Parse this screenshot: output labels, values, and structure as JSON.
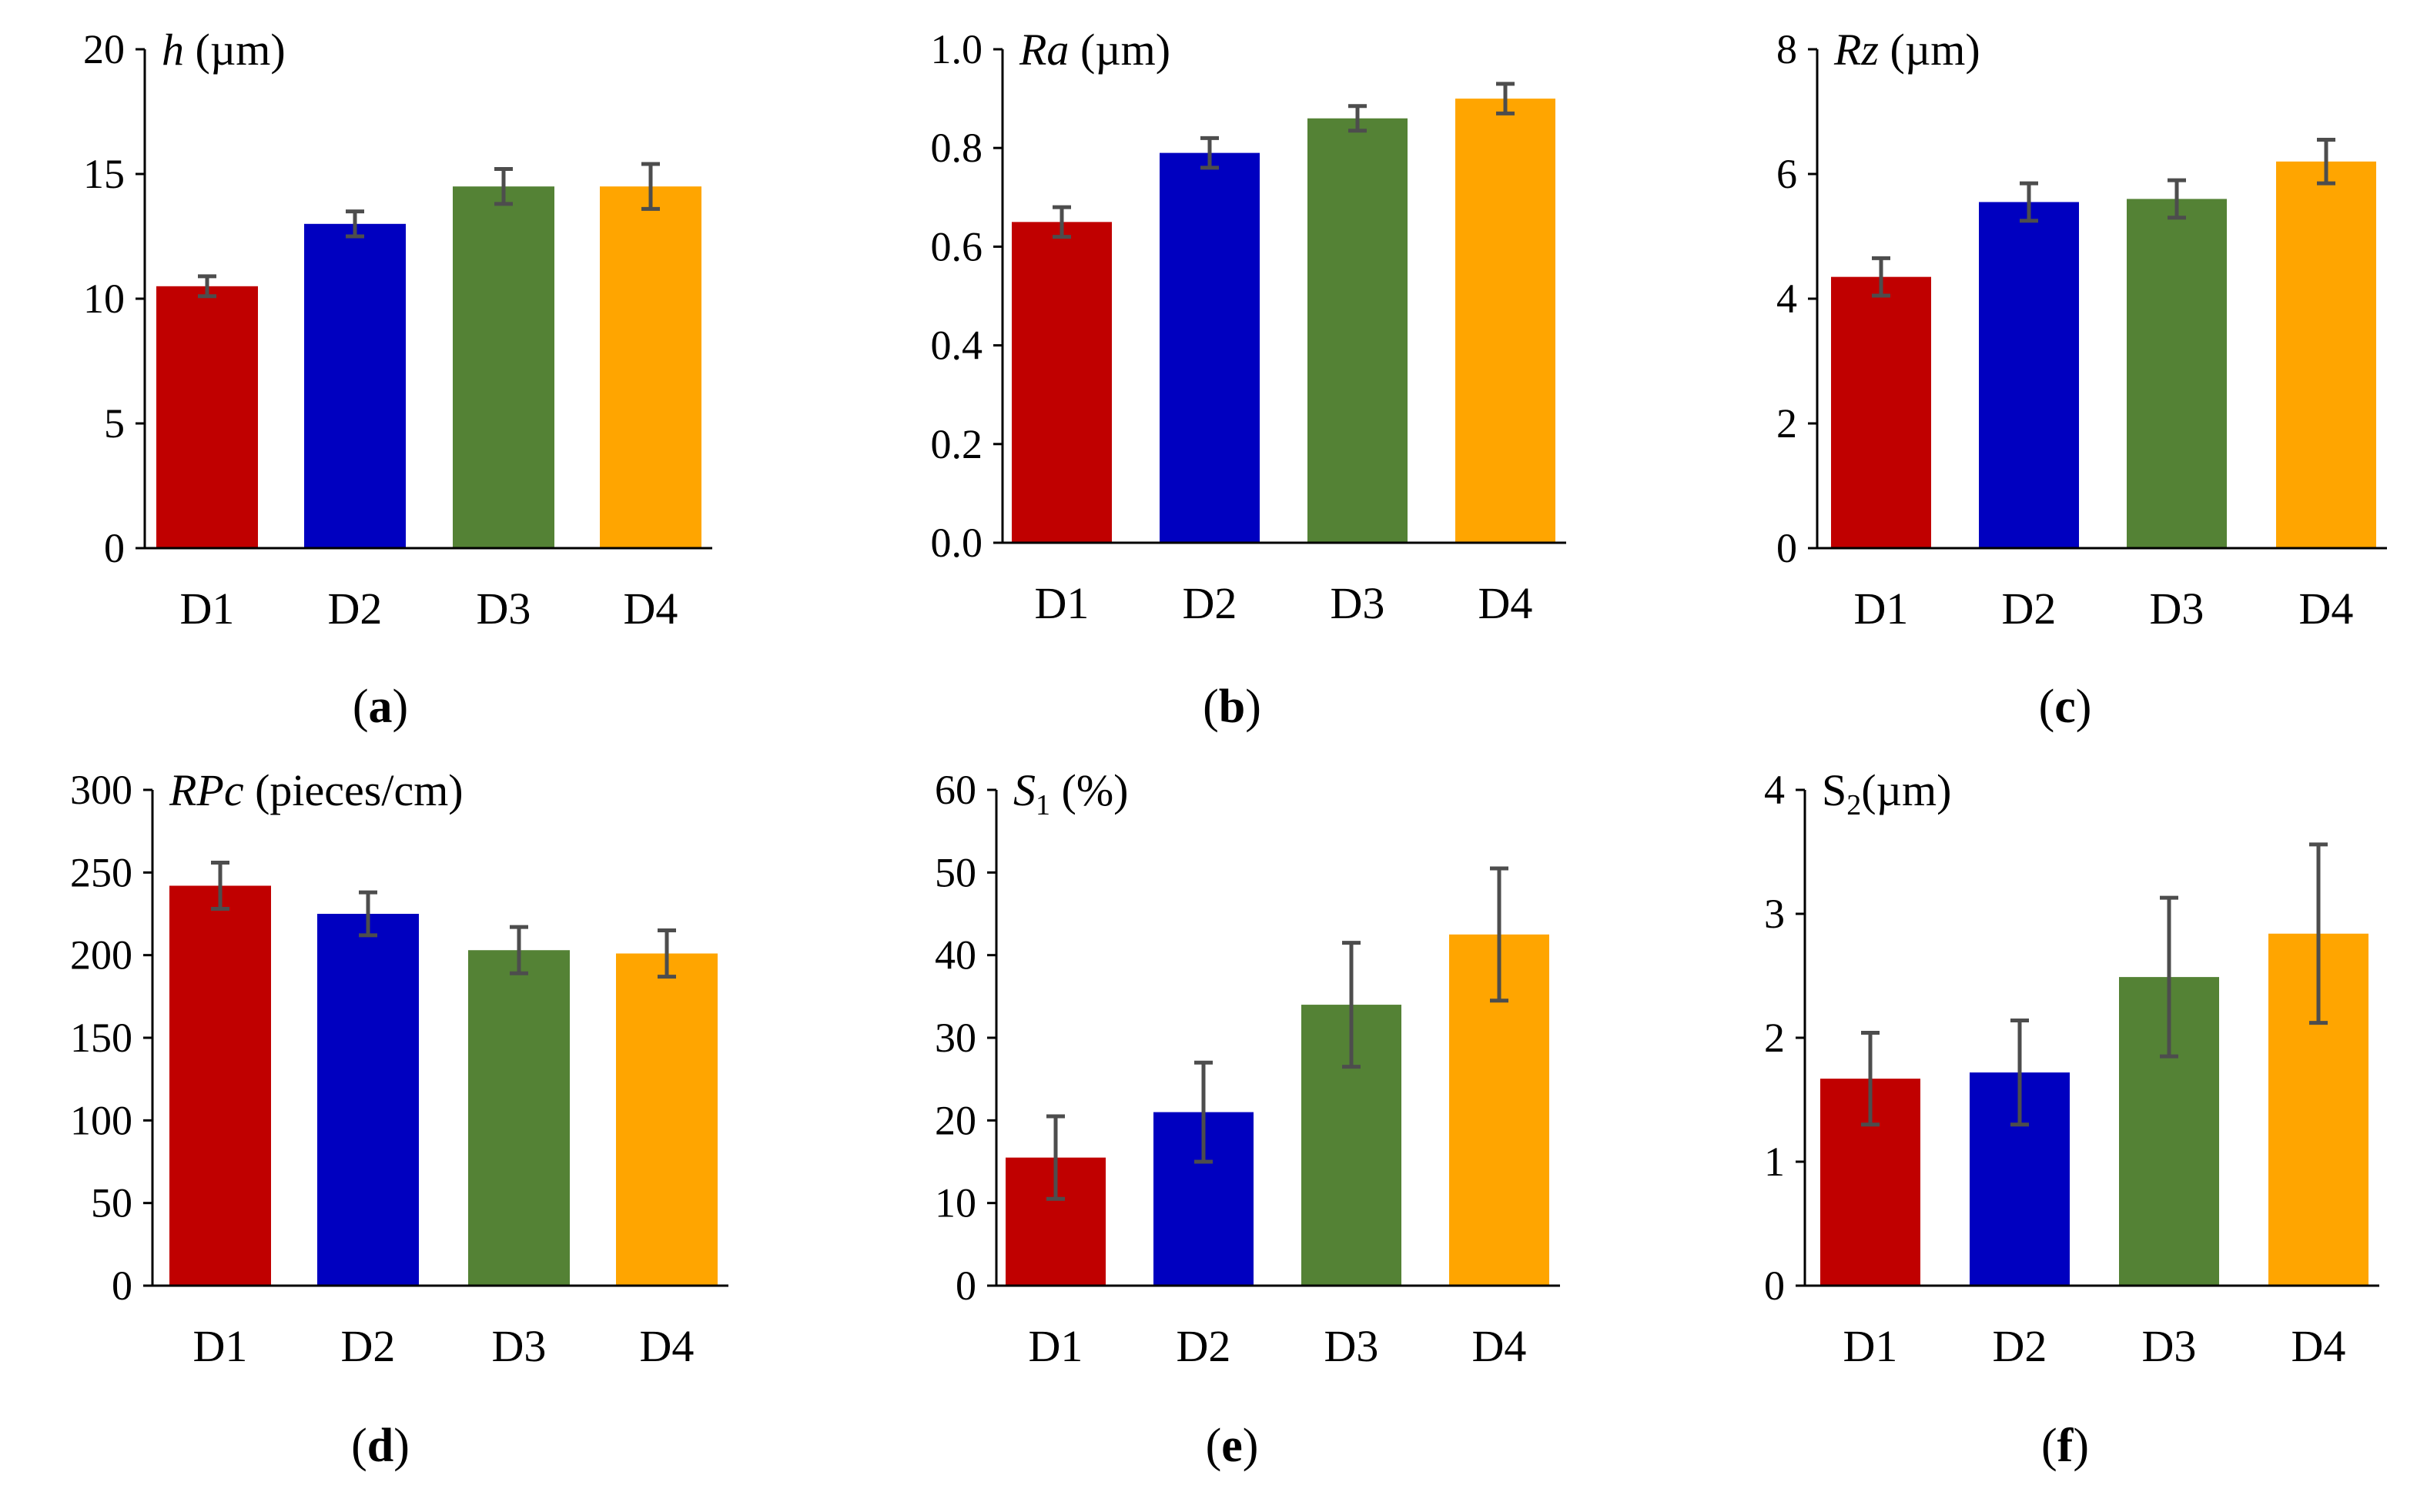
{
  "colors": {
    "D1": "#c00000",
    "D2": "#0000c0",
    "D3": "#548235",
    "D4": "#ffa500",
    "error": "#4d4d4d"
  },
  "chart_data": [
    {
      "type": "bar",
      "panel": "(a)",
      "title_var": "h",
      "title_unit": " (µm)",
      "sub": "",
      "categories": [
        "D1",
        "D2",
        "D3",
        "D4"
      ],
      "values": [
        10.5,
        13.0,
        14.5,
        14.5
      ],
      "errors": [
        0.4,
        0.5,
        0.7,
        0.9
      ],
      "ylim": [
        0,
        20
      ],
      "yticks": [
        "0",
        "5",
        "10",
        "15",
        "20"
      ]
    },
    {
      "type": "bar",
      "panel": "(b)",
      "title_var": "Ra",
      "title_unit": " (µm)",
      "sub": "",
      "categories": [
        "D1",
        "D2",
        "D3",
        "D4"
      ],
      "values": [
        0.65,
        0.79,
        0.86,
        0.9
      ],
      "errors": [
        0.03,
        0.03,
        0.025,
        0.03
      ],
      "ylim": [
        0,
        1.0
      ],
      "yticks": [
        "0.0",
        "0.2",
        "0.4",
        "0.6",
        "0.8",
        "1.0"
      ]
    },
    {
      "type": "bar",
      "panel": "(c)",
      "title_var": "Rz",
      "title_unit": " (µm)",
      "sub": "",
      "categories": [
        "D1",
        "D2",
        "D3",
        "D4"
      ],
      "values": [
        4.35,
        5.55,
        5.6,
        6.2
      ],
      "errors": [
        0.3,
        0.3,
        0.3,
        0.35
      ],
      "ylim": [
        0,
        8
      ],
      "yticks": [
        "0",
        "2",
        "4",
        "6",
        "8"
      ]
    },
    {
      "type": "bar",
      "panel": "(d)",
      "title_var": "RPc",
      "title_unit": " (pieces/cm)",
      "sub": "",
      "categories": [
        "D1",
        "D2",
        "D3",
        "D4"
      ],
      "values": [
        242,
        225,
        203,
        201
      ],
      "errors": [
        14,
        13,
        14,
        14
      ],
      "ylim": [
        0,
        300
      ],
      "yticks": [
        "0",
        "50",
        "100",
        "150",
        "200",
        "250",
        "300"
      ]
    },
    {
      "type": "bar",
      "panel": "(e)",
      "title_var": "S",
      "title_unit": " (%)",
      "sub": "1",
      "categories": [
        "D1",
        "D2",
        "D3",
        "D4"
      ],
      "values": [
        15.5,
        21.0,
        34.0,
        42.5
      ],
      "errors": [
        5.0,
        6.0,
        7.5,
        8.0
      ],
      "ylim": [
        0,
        60
      ],
      "yticks": [
        "0",
        "10",
        "20",
        "30",
        "40",
        "50",
        "60"
      ]
    },
    {
      "type": "bar",
      "panel": "(f)",
      "title_var": "S",
      "title_unit": "(µm)",
      "sub": "2",
      "categories": [
        "D1",
        "D2",
        "D3",
        "D4"
      ],
      "values": [
        1.67,
        1.72,
        2.49,
        2.84
      ],
      "errors": [
        0.37,
        0.42,
        0.64,
        0.72
      ],
      "ylim": [
        0,
        4
      ],
      "yticks": [
        "0",
        "1",
        "2",
        "3",
        "4"
      ]
    }
  ]
}
